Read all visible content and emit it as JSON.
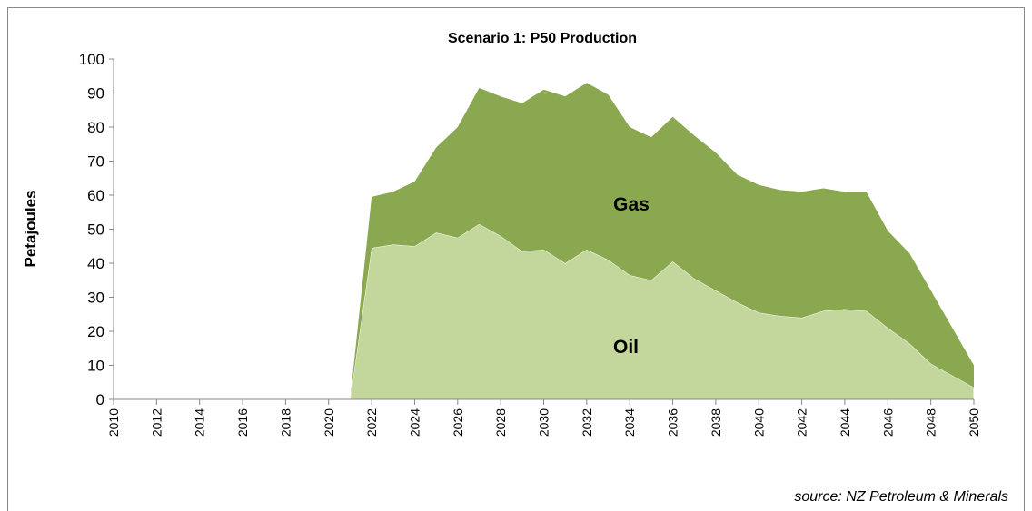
{
  "chart_data": {
    "type": "stacked_area",
    "title": "Scenario 1:  P50 Production",
    "y_label": "Petajoules",
    "source": "source:  NZ Petroleum & Minerals",
    "x": [
      2010,
      2011,
      2012,
      2013,
      2014,
      2015,
      2016,
      2017,
      2018,
      2019,
      2020,
      2021,
      2022,
      2023,
      2024,
      2025,
      2026,
      2027,
      2028,
      2029,
      2030,
      2031,
      2032,
      2033,
      2034,
      2035,
      2036,
      2037,
      2038,
      2039,
      2040,
      2041,
      2042,
      2043,
      2044,
      2045,
      2046,
      2047,
      2048,
      2049,
      2050
    ],
    "xlim": [
      2010,
      2050
    ],
    "xticks": [
      2010,
      2012,
      2014,
      2016,
      2018,
      2020,
      2022,
      2024,
      2026,
      2028,
      2030,
      2032,
      2034,
      2036,
      2038,
      2040,
      2042,
      2044,
      2046,
      2048,
      2050
    ],
    "ylim": [
      0,
      100
    ],
    "yticks": [
      0,
      10,
      20,
      30,
      40,
      50,
      60,
      70,
      80,
      90,
      100
    ],
    "series": [
      {
        "name": "Oil",
        "color": "#c3d69b",
        "values": [
          0,
          0,
          0,
          0,
          0,
          0,
          0,
          0,
          0,
          0,
          0,
          0,
          44.5,
          45.5,
          45,
          49,
          47.5,
          51.5,
          48,
          43.5,
          44,
          40,
          44,
          41,
          36.5,
          35,
          40.5,
          35.5,
          32,
          28.5,
          25.5,
          24.5,
          24,
          26,
          26.5,
          26,
          21,
          16.5,
          10.5,
          7,
          3.5
        ]
      },
      {
        "name": "Gas",
        "color": "#8aa84f",
        "values": [
          0,
          0,
          0,
          0,
          0,
          0,
          0,
          0,
          0,
          0,
          0,
          0,
          15,
          15.5,
          19,
          25,
          32.5,
          40,
          41,
          43.5,
          47,
          49,
          49,
          48.5,
          43.5,
          42,
          42.5,
          42,
          40.5,
          37.5,
          37.5,
          37,
          37,
          36,
          34.5,
          35,
          28.5,
          26.5,
          21.5,
          14,
          6.5
        ]
      }
    ]
  }
}
